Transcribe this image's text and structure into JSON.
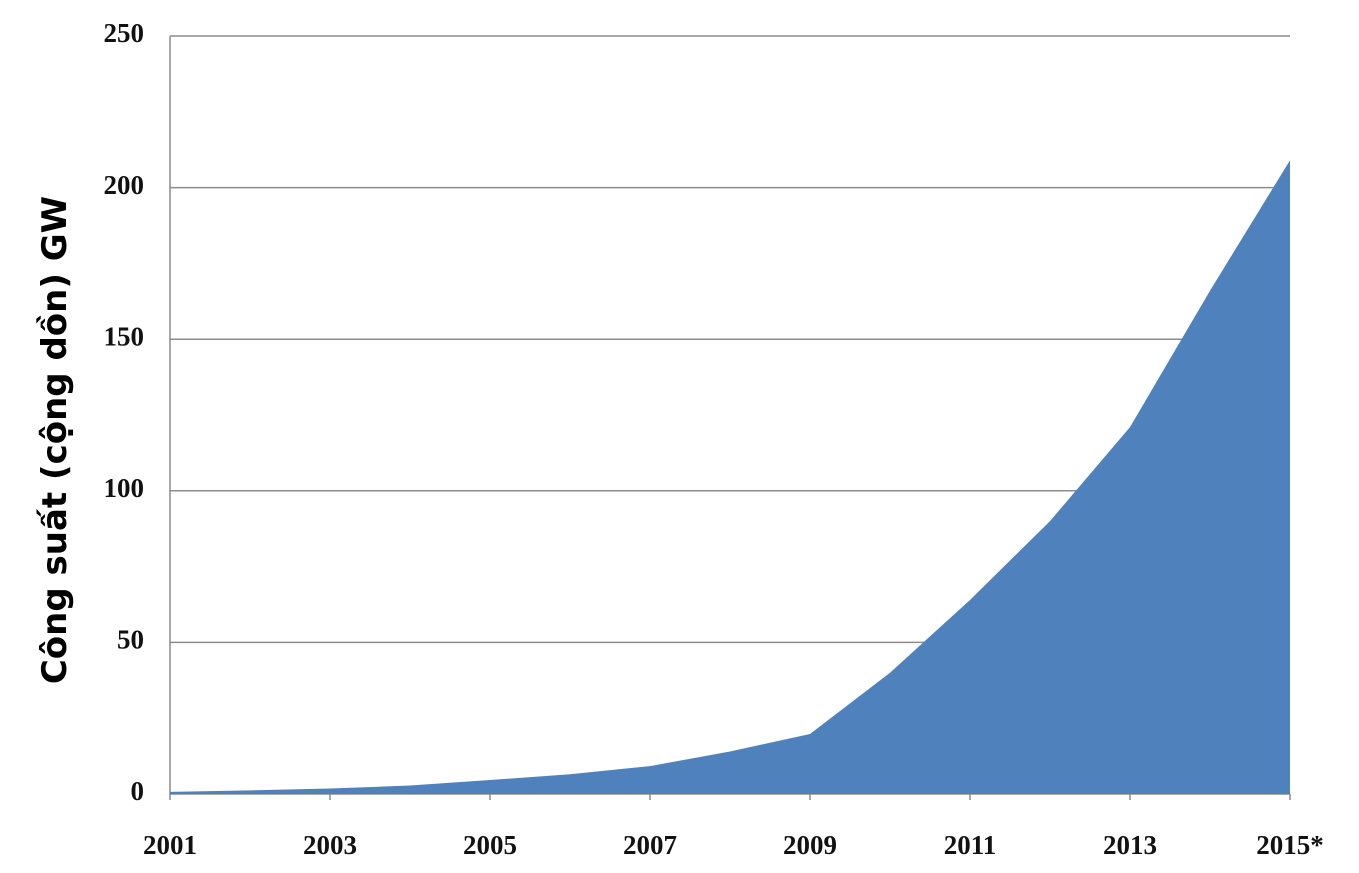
{
  "chart_data": {
    "type": "area",
    "y_label": "Công suất (cộng dồn) GW",
    "x": [
      2001,
      2002,
      2003,
      2004,
      2005,
      2006,
      2007,
      2008,
      2009,
      2010,
      2011,
      2012,
      2013,
      2014,
      2015
    ],
    "values": [
      0.7,
      1.2,
      1.8,
      2.8,
      4.6,
      6.5,
      9.2,
      14,
      19.8,
      40,
      64,
      90,
      121,
      166,
      209
    ],
    "color": "#4f81bd",
    "xlim": [
      2001,
      2015
    ],
    "xticks": [
      2001,
      2003,
      2005,
      2007,
      2009,
      2011,
      2013,
      {
        "value": 2015,
        "label": "2015*"
      }
    ],
    "ylim": [
      0,
      250
    ],
    "yticks": [
      0,
      50,
      100,
      150,
      200,
      250
    ],
    "grid": true
  }
}
